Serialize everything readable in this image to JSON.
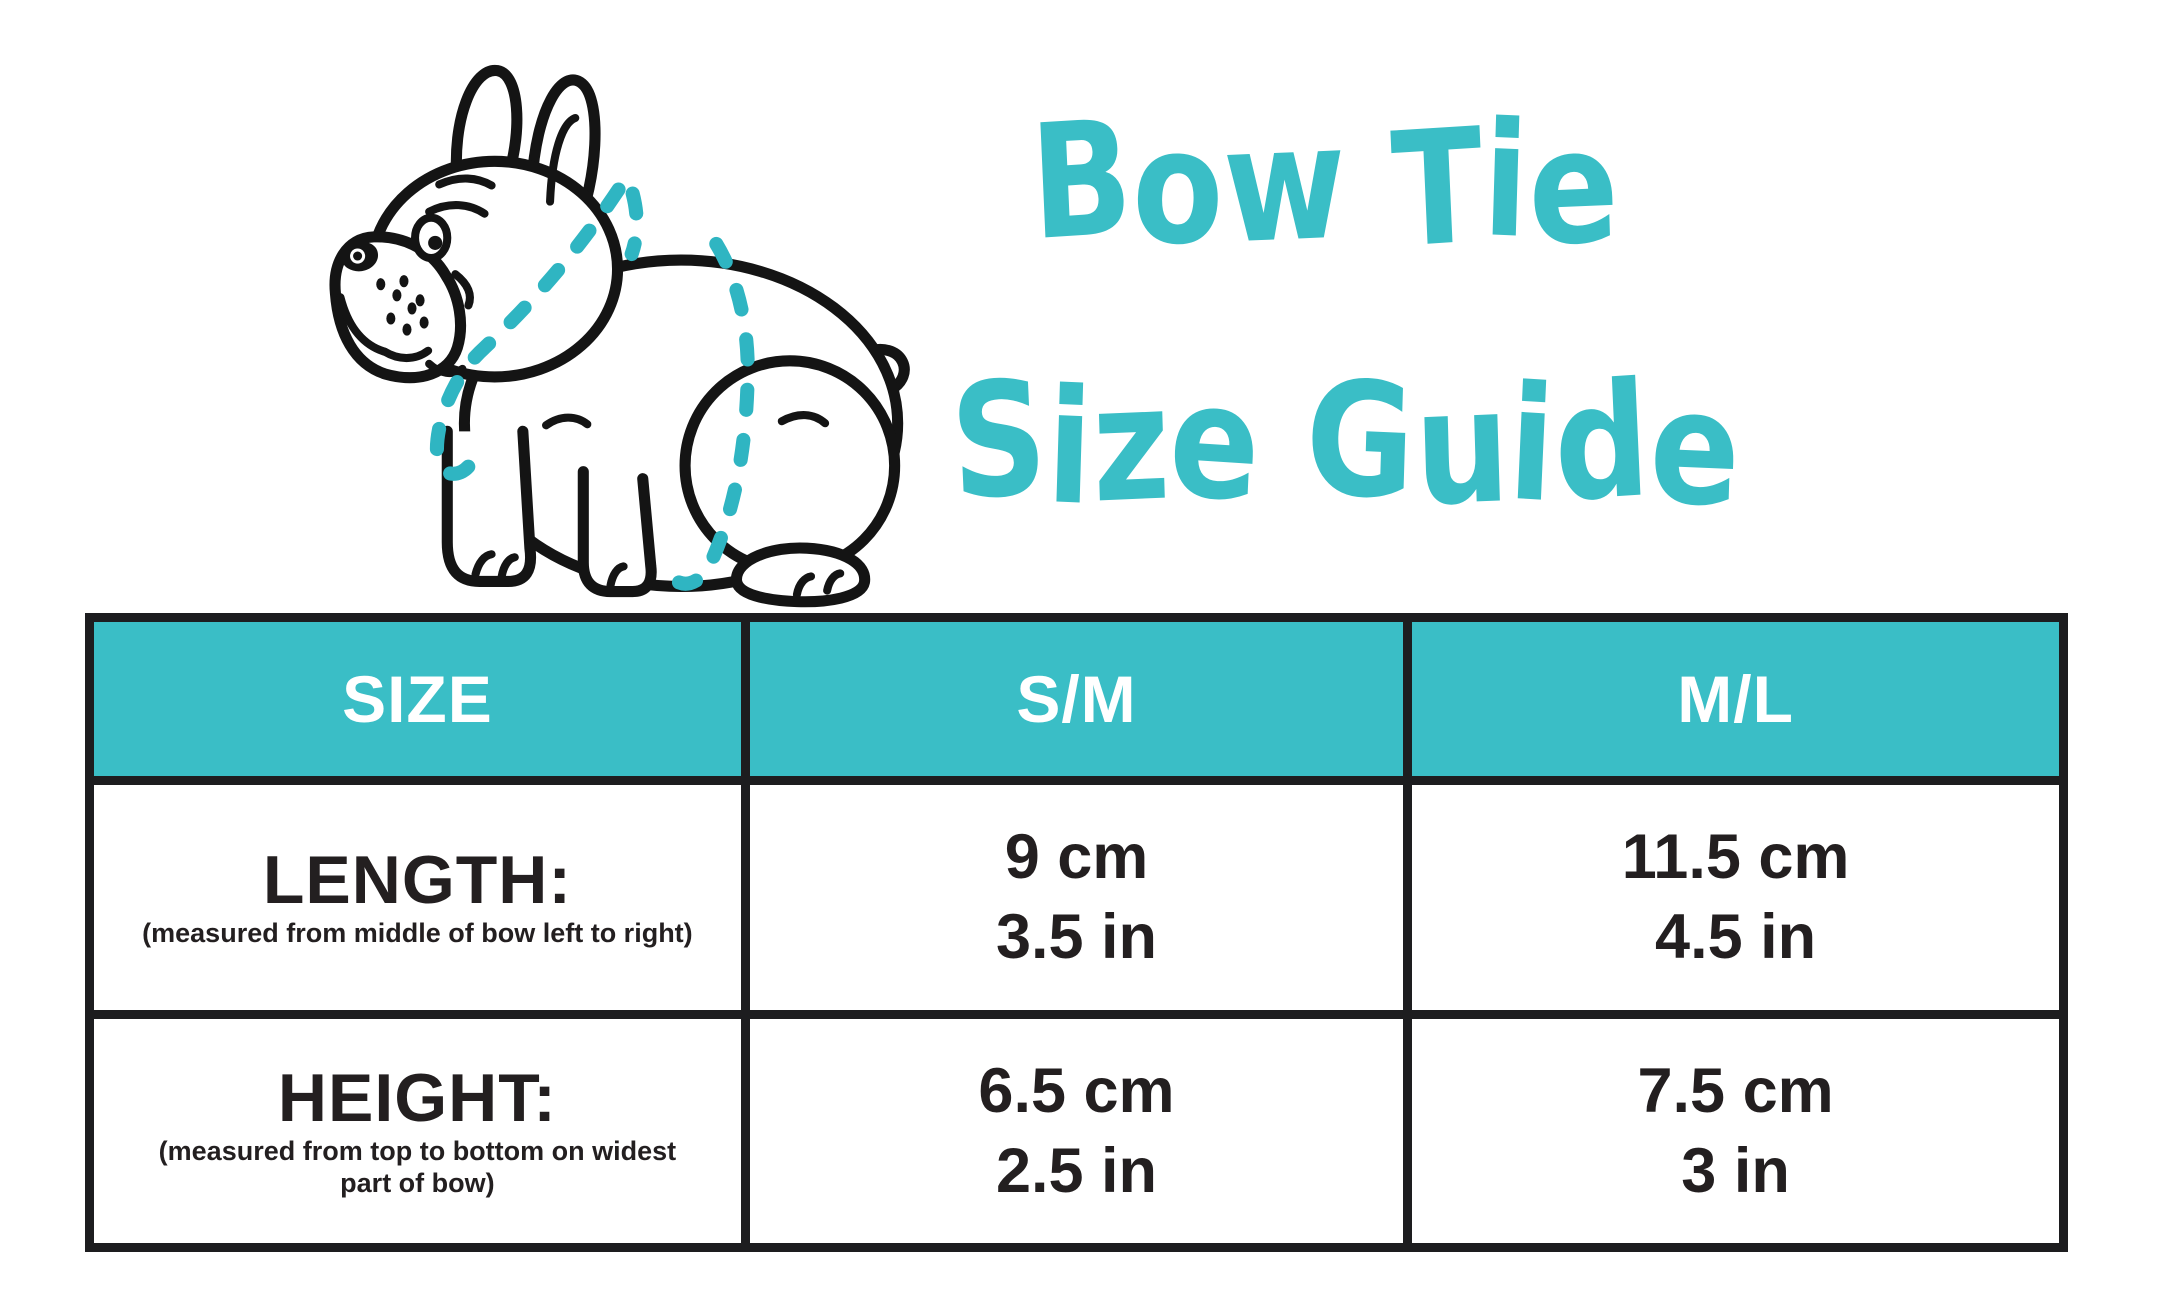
{
  "title": {
    "line1": "Bow Tie",
    "line2": "Size Guide"
  },
  "colors": {
    "accent_teal": "#3abec6",
    "dash_teal": "#2fb5c2",
    "ink": "#231f20",
    "table_border": "#1d1d1f"
  },
  "illustration": {
    "name": "french-bulldog-measurement-diagram"
  },
  "table": {
    "header": {
      "size": "SIZE",
      "sm": "S/M",
      "ml": "M/L"
    },
    "length_row": {
      "label": "LENGTH:",
      "note": "(measured from middle of bow left to right)",
      "sm": [
        "9 cm",
        "3.5 in"
      ],
      "ml": [
        "11.5 cm",
        "4.5 in"
      ]
    },
    "height_row": {
      "label": "HEIGHT:",
      "note": "(measured from top to bottom on widest part of bow)",
      "sm": [
        "6.5 cm",
        "2.5 in"
      ],
      "ml": [
        "7.5 cm",
        "3 in"
      ]
    }
  }
}
